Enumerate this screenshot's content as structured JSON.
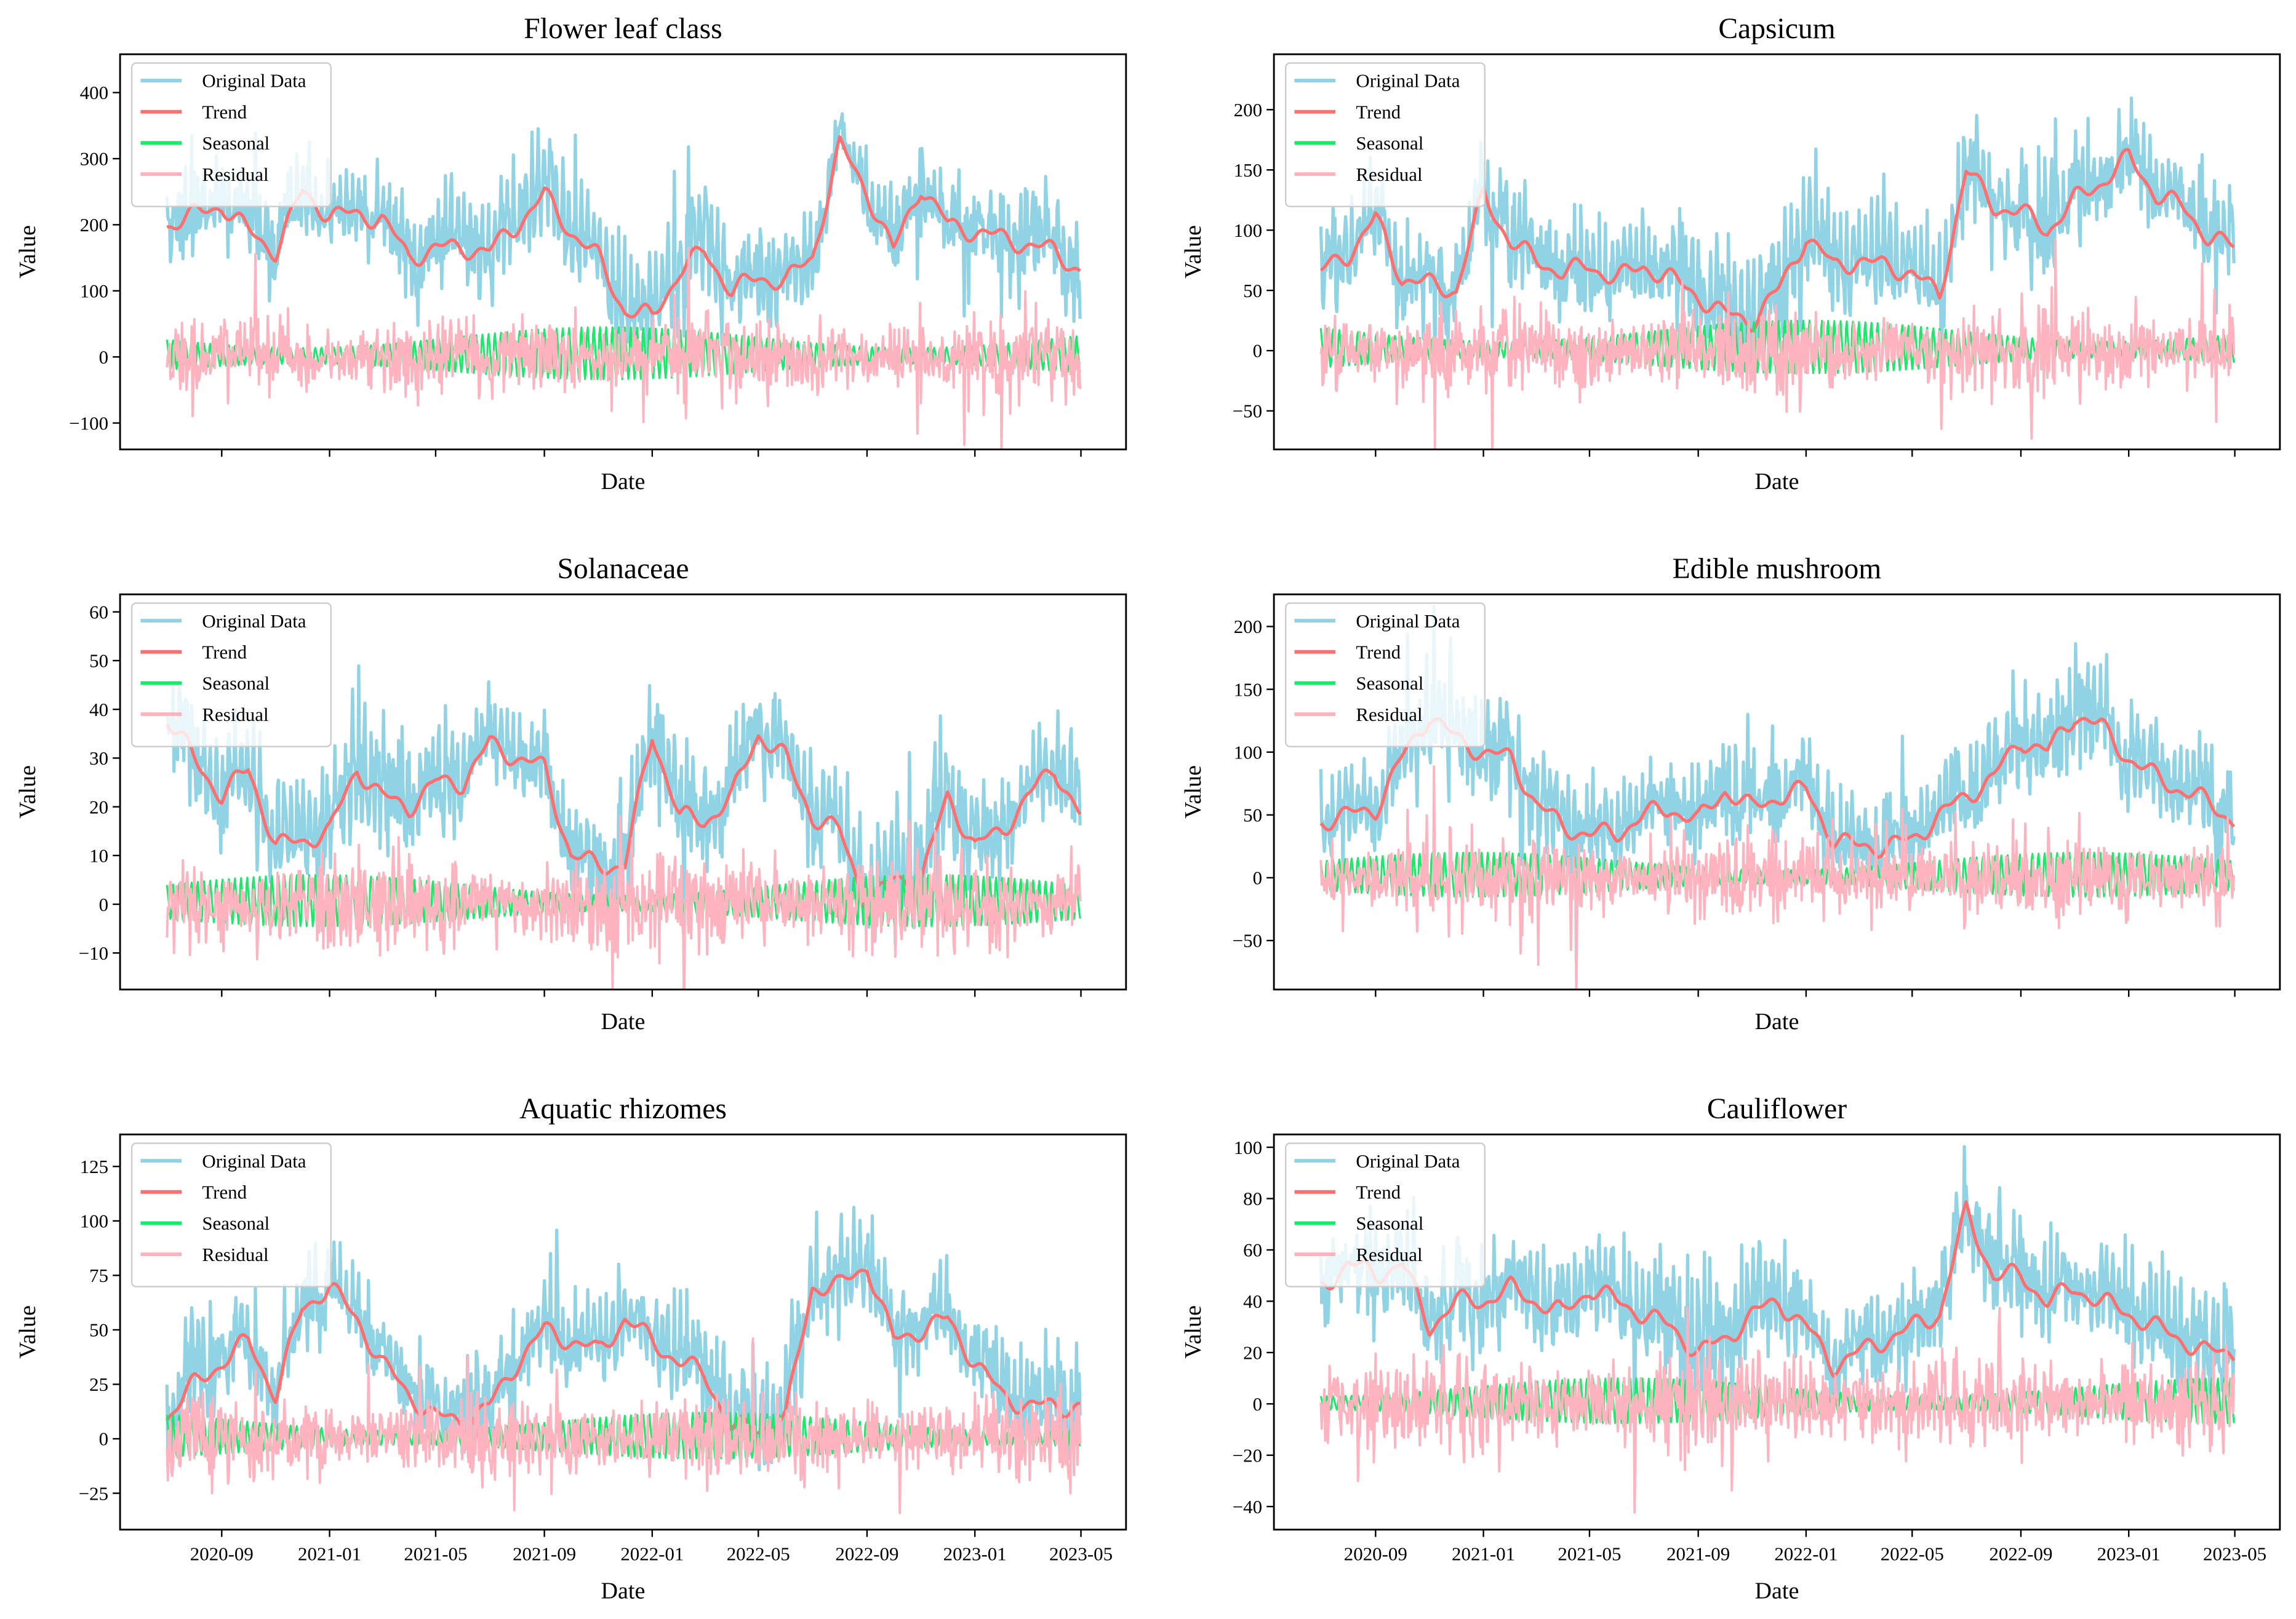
{
  "figure": {
    "xlabel": "Date",
    "ylabel": "Value",
    "legend": [
      "Original Data",
      "Trend",
      "Seasonal",
      "Residual"
    ],
    "colors": {
      "original": "#8fd3e4",
      "trend": "#ff6f6f",
      "seasonal": "#1ee86b",
      "residual": "#ffb3bf"
    }
  },
  "shared": {
    "data_start": "2020-07-01",
    "data_end": "2023-04-30",
    "xlim": [
      "2020-05-09",
      "2023-06-21"
    ],
    "trend_anchor_months": [
      "2020-07",
      "2020-08",
      "2020-09",
      "2020-10",
      "2020-11",
      "2020-12",
      "2021-01",
      "2021-02",
      "2021-03",
      "2021-04",
      "2021-05",
      "2021-06",
      "2021-07",
      "2021-08",
      "2021-09",
      "2021-10",
      "2021-11",
      "2021-12",
      "2022-01",
      "2022-02",
      "2022-03",
      "2022-04",
      "2022-05",
      "2022-06",
      "2022-07",
      "2022-08",
      "2022-09",
      "2022-10",
      "2022-11",
      "2022-12",
      "2023-01",
      "2023-02",
      "2023-03",
      "2023-04",
      "2023-05"
    ],
    "xticks": [
      "2020-09-01",
      "2021-01-01",
      "2021-05-01",
      "2021-09-01",
      "2022-01-01",
      "2022-05-01",
      "2022-09-01",
      "2023-01-01",
      "2023-05-01"
    ],
    "xtick_labels": [
      "2020-09",
      "2021-01",
      "2021-05",
      "2021-09",
      "2022-01",
      "2022-05",
      "2022-09",
      "2023-01",
      "2023-05"
    ]
  },
  "chart_data": [
    {
      "type": "line",
      "title": "Flower leaf class",
      "ylim": [
        -140,
        458
      ],
      "yticks": [
        -100,
        0,
        100,
        200,
        300,
        400
      ],
      "ytick_labels": [
        "−100",
        "0",
        "100",
        "200",
        "300",
        "400"
      ],
      "trend": [
        200,
        215,
        230,
        190,
        160,
        250,
        215,
        215,
        210,
        150,
        165,
        165,
        160,
        200,
        245,
        190,
        150,
        70,
        60,
        130,
        160,
        100,
        120,
        115,
        150,
        320,
        250,
        160,
        260,
        200,
        190,
        180,
        170,
        160,
        130
      ],
      "seasonal_amplitude": 45,
      "residual_scale": 28
    },
    {
      "type": "line",
      "title": "Capsicum",
      "ylim": [
        -82,
        246
      ],
      "yticks": [
        -50,
        0,
        50,
        100,
        150,
        200
      ],
      "ytick_labels": [
        "−50",
        "0",
        "50",
        "100",
        "150",
        "200"
      ],
      "trend": [
        65,
        80,
        110,
        60,
        55,
        50,
        130,
        90,
        75,
        65,
        70,
        60,
        70,
        60,
        45,
        30,
        25,
        50,
        95,
        70,
        75,
        70,
        65,
        45,
        150,
        120,
        115,
        100,
        125,
        140,
        160,
        130,
        120,
        95,
        85
      ],
      "seasonal_amplitude": 25,
      "residual_scale": 17
    },
    {
      "type": "line",
      "title": "Solanaceae",
      "ylim": [
        -17.5,
        63.6
      ],
      "yticks": [
        -10,
        0,
        10,
        20,
        30,
        40,
        50,
        60
      ],
      "ytick_labels": [
        "−10",
        "0",
        "10",
        "20",
        "30",
        "40",
        "50",
        "60"
      ],
      "trend": [
        38,
        30,
        22,
        28,
        12,
        13,
        15,
        28,
        22,
        20,
        25,
        25,
        33,
        30,
        28,
        10,
        8,
        8,
        35,
        18,
        17,
        22,
        35,
        30,
        18,
        15,
        0,
        5,
        5,
        22,
        12,
        15,
        22,
        28,
        18
      ],
      "seasonal_amplitude": 6,
      "residual_scale": 4.5
    },
    {
      "type": "line",
      "title": "Edible mushroom",
      "ylim": [
        -89,
        225.6
      ],
      "yticks": [
        -50,
        0,
        50,
        100,
        150,
        200
      ],
      "ytick_labels": [
        "−50",
        "0",
        "50",
        "100",
        "150",
        "200"
      ],
      "trend": [
        45,
        50,
        55,
        95,
        130,
        110,
        100,
        95,
        60,
        40,
        35,
        35,
        50,
        55,
        45,
        70,
        55,
        65,
        70,
        30,
        25,
        25,
        30,
        50,
        65,
        80,
        110,
        100,
        130,
        120,
        95,
        80,
        70,
        60,
        45
      ],
      "seasonal_amplitude": 20,
      "residual_scale": 16
    },
    {
      "type": "line",
      "title": "Aquatic rhizomes",
      "ylim": [
        -41.7,
        139.7
      ],
      "yticks": [
        -25,
        0,
        25,
        50,
        75,
        100,
        125
      ],
      "ytick_labels": [
        "−25",
        "0",
        "25",
        "50",
        "75",
        "100",
        "125"
      ],
      "trend": [
        10,
        25,
        35,
        45,
        20,
        60,
        70,
        55,
        35,
        20,
        10,
        8,
        15,
        35,
        50,
        45,
        40,
        55,
        45,
        35,
        30,
        5,
        5,
        10,
        70,
        70,
        80,
        45,
        50,
        55,
        35,
        20,
        15,
        15,
        15
      ],
      "seasonal_amplitude": 12,
      "residual_scale": 9
    },
    {
      "type": "line",
      "title": "Cauliflower",
      "ylim": [
        -49,
        105
      ],
      "yticks": [
        -40,
        -20,
        0,
        20,
        40,
        60,
        80,
        100
      ],
      "ytick_labels": [
        "−40",
        "−20",
        "0",
        "20",
        "40",
        "60",
        "80",
        "100"
      ],
      "trend": [
        45,
        55,
        50,
        55,
        30,
        40,
        40,
        45,
        40,
        35,
        45,
        40,
        35,
        30,
        20,
        25,
        35,
        40,
        30,
        15,
        20,
        25,
        30,
        35,
        75,
        50,
        50,
        40,
        45,
        40,
        35,
        30,
        25,
        20,
        20
      ],
      "seasonal_amplitude": 10,
      "residual_scale": 9
    }
  ]
}
